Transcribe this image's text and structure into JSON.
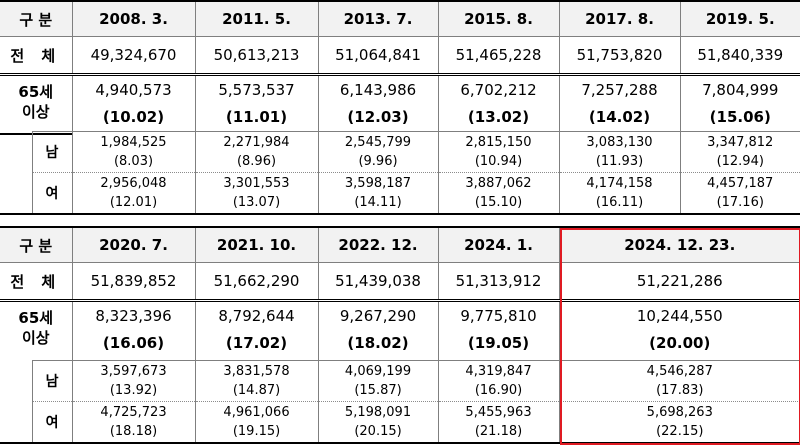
{
  "colors": {
    "highlight": "#e01a22",
    "header_bg": "#f2f2f2"
  },
  "labels": {
    "category": "구 분",
    "total": "전 체",
    "age65_line1": "65세",
    "age65_line2": "이상",
    "male": "남",
    "female": "여"
  },
  "table1": {
    "dates": [
      "2008. 3.",
      "2011. 5.",
      "2013. 7.",
      "2015. 8.",
      "2017. 8.",
      "2019. 5."
    ],
    "total": [
      "49,324,670",
      "50,613,213",
      "51,064,841",
      "51,465,228",
      "51,753,820",
      "51,840,339"
    ],
    "over65": [
      {
        "count": "4,940,573",
        "pct": "(10.02)"
      },
      {
        "count": "5,573,537",
        "pct": "(11.01)"
      },
      {
        "count": "6,143,986",
        "pct": "(12.03)"
      },
      {
        "count": "6,702,212",
        "pct": "(13.02)"
      },
      {
        "count": "7,257,288",
        "pct": "(14.02)"
      },
      {
        "count": "7,804,999",
        "pct": "(15.06)"
      }
    ],
    "male": [
      {
        "count": "1,984,525",
        "pct": "(8.03)"
      },
      {
        "count": "2,271,984",
        "pct": "(8.96)"
      },
      {
        "count": "2,545,799",
        "pct": "(9.96)"
      },
      {
        "count": "2,815,150",
        "pct": "(10.94)"
      },
      {
        "count": "3,083,130",
        "pct": "(11.93)"
      },
      {
        "count": "3,347,812",
        "pct": "(12.94)"
      }
    ],
    "female": [
      {
        "count": "2,956,048",
        "pct": "(12.01)"
      },
      {
        "count": "3,301,553",
        "pct": "(13.07)"
      },
      {
        "count": "3,598,187",
        "pct": "(14.11)"
      },
      {
        "count": "3,887,062",
        "pct": "(15.10)"
      },
      {
        "count": "4,174,158",
        "pct": "(16.11)"
      },
      {
        "count": "4,457,187",
        "pct": "(17.16)"
      }
    ]
  },
  "table2": {
    "dates": [
      "2020. 7.",
      "2021. 10.",
      "2022. 12.",
      "2024. 1.",
      "2024. 12. 23."
    ],
    "total": [
      "51,839,852",
      "51,662,290",
      "51,439,038",
      "51,313,912",
      "51,221,286"
    ],
    "over65": [
      {
        "count": "8,323,396",
        "pct": "(16.06)"
      },
      {
        "count": "8,792,644",
        "pct": "(17.02)"
      },
      {
        "count": "9,267,290",
        "pct": "(18.02)"
      },
      {
        "count": "9,775,810",
        "pct": "(19.05)"
      },
      {
        "count": "10,244,550",
        "pct": "(20.00)"
      }
    ],
    "male": [
      {
        "count": "3,597,673",
        "pct": "(13.92)"
      },
      {
        "count": "3,831,578",
        "pct": "(14.87)"
      },
      {
        "count": "4,069,199",
        "pct": "(15.87)"
      },
      {
        "count": "4,319,847",
        "pct": "(16.90)"
      },
      {
        "count": "4,546,287",
        "pct": "(17.83)"
      }
    ],
    "female": [
      {
        "count": "4,725,723",
        "pct": "(18.18)"
      },
      {
        "count": "4,961,066",
        "pct": "(19.15)"
      },
      {
        "count": "5,198,091",
        "pct": "(20.15)"
      },
      {
        "count": "5,455,963",
        "pct": "(21.18)"
      },
      {
        "count": "5,698,263",
        "pct": "(22.15)"
      }
    ]
  }
}
